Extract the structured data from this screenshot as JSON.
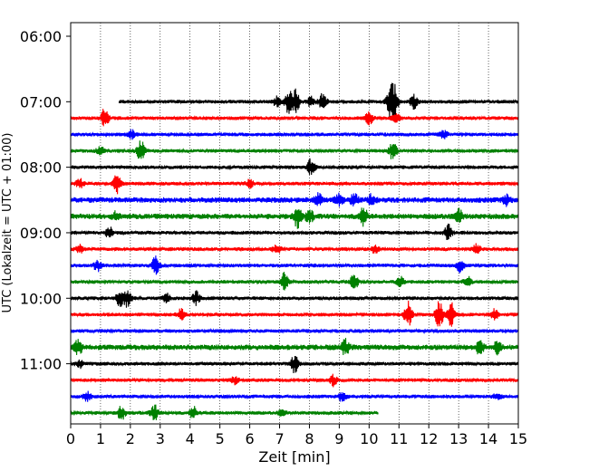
{
  "chart_data": {
    "type": "line",
    "title": "",
    "xlabel": "Zeit  [min]",
    "ylabel": "UTC (Lokalzeit = UTC + 01:00)",
    "xlim": [
      0,
      15
    ],
    "x_ticks": [
      0,
      1,
      2,
      3,
      4,
      5,
      6,
      7,
      8,
      9,
      10,
      11,
      12,
      13,
      14,
      15
    ],
    "x_tick_labels": [
      "0",
      "1",
      "2",
      "3",
      "4",
      "5",
      "6",
      "7",
      "8",
      "9",
      "10",
      "11",
      "12",
      "13",
      "14",
      "15"
    ],
    "y_ticks": [
      "06:00",
      "07:00",
      "08:00",
      "09:00",
      "10:00",
      "11:00"
    ],
    "grid": "vertical dotted at each minute",
    "trace_interval_minutes": 15,
    "traces": [
      {
        "start": "07:00",
        "color": "#000000",
        "x_start": 1.62,
        "x_end": 15,
        "noise": 2,
        "events": [
          [
            6.9,
            5
          ],
          [
            7.3,
            12
          ],
          [
            7.55,
            14
          ],
          [
            8.05,
            6
          ],
          [
            8.45,
            9
          ],
          [
            10.7,
            14
          ],
          [
            10.85,
            16
          ],
          [
            11.5,
            7
          ]
        ]
      },
      {
        "start": "07:15",
        "color": "#ff0000",
        "x_start": 0,
        "x_end": 15,
        "noise": 2,
        "events": [
          [
            1.15,
            12
          ],
          [
            10.0,
            7
          ],
          [
            10.9,
            5
          ]
        ]
      },
      {
        "start": "07:30",
        "color": "#0000ff",
        "x_start": 0,
        "x_end": 15,
        "noise": 2,
        "events": [
          [
            2.05,
            5
          ],
          [
            12.5,
            4
          ]
        ]
      },
      {
        "start": "07:45",
        "color": "#008000",
        "x_start": 0,
        "x_end": 15,
        "noise": 2,
        "events": [
          [
            1.0,
            5
          ],
          [
            2.35,
            11
          ],
          [
            10.8,
            10
          ]
        ]
      },
      {
        "start": "08:00",
        "color": "#000000",
        "x_start": 0,
        "x_end": 15,
        "noise": 2,
        "events": [
          [
            8.05,
            9
          ]
        ]
      },
      {
        "start": "08:15",
        "color": "#ff0000",
        "x_start": 0,
        "x_end": 15,
        "noise": 2,
        "events": [
          [
            0.3,
            5
          ],
          [
            1.55,
            10
          ],
          [
            6.0,
            4
          ]
        ]
      },
      {
        "start": "08:30",
        "color": "#0000ff",
        "x_start": 0,
        "x_end": 15,
        "noise": 3,
        "events": [
          [
            8.3,
            6
          ],
          [
            9.0,
            6
          ],
          [
            9.5,
            6
          ],
          [
            10.1,
            6
          ],
          [
            14.6,
            5
          ]
        ]
      },
      {
        "start": "08:45",
        "color": "#008000",
        "x_start": 0,
        "x_end": 15,
        "noise": 3,
        "events": [
          [
            1.5,
            4
          ],
          [
            7.6,
            12
          ],
          [
            8.0,
            7
          ],
          [
            9.8,
            11
          ],
          [
            13.0,
            9
          ]
        ]
      },
      {
        "start": "09:00",
        "color": "#000000",
        "x_start": 0,
        "x_end": 15,
        "noise": 2,
        "events": [
          [
            1.3,
            6
          ],
          [
            12.65,
            9
          ]
        ]
      },
      {
        "start": "09:15",
        "color": "#ff0000",
        "x_start": 0,
        "x_end": 15,
        "noise": 2,
        "events": [
          [
            0.3,
            4
          ],
          [
            6.9,
            5
          ],
          [
            10.2,
            4
          ],
          [
            13.6,
            5
          ]
        ]
      },
      {
        "start": "09:30",
        "color": "#0000ff",
        "x_start": 0,
        "x_end": 15,
        "noise": 2,
        "events": [
          [
            0.9,
            6
          ],
          [
            2.85,
            10
          ],
          [
            13.05,
            7
          ]
        ]
      },
      {
        "start": "09:45",
        "color": "#008000",
        "x_start": 0,
        "x_end": 15,
        "noise": 2,
        "events": [
          [
            7.15,
            10
          ],
          [
            9.5,
            8
          ],
          [
            11.05,
            5
          ],
          [
            13.3,
            6
          ]
        ]
      },
      {
        "start": "10:00",
        "color": "#000000",
        "x_start": 0,
        "x_end": 15,
        "noise": 2,
        "events": [
          [
            1.65,
            8
          ],
          [
            1.9,
            9
          ],
          [
            3.2,
            5
          ],
          [
            4.2,
            8
          ]
        ]
      },
      {
        "start": "10:15",
        "color": "#ff0000",
        "x_start": 0,
        "x_end": 15,
        "noise": 2,
        "events": [
          [
            3.7,
            6
          ],
          [
            11.3,
            14
          ],
          [
            12.35,
            16
          ],
          [
            12.75,
            14
          ],
          [
            14.2,
            6
          ]
        ]
      },
      {
        "start": "10:30",
        "color": "#0000ff",
        "x_start": 0,
        "x_end": 15,
        "noise": 2,
        "events": []
      },
      {
        "start": "10:45",
        "color": "#008000",
        "x_start": 0,
        "x_end": 15,
        "noise": 3,
        "events": [
          [
            0.25,
            8
          ],
          [
            9.2,
            8
          ],
          [
            13.7,
            7
          ],
          [
            14.3,
            6
          ]
        ]
      },
      {
        "start": "11:00",
        "color": "#000000",
        "x_start": 0,
        "x_end": 15,
        "noise": 2,
        "events": [
          [
            0.3,
            4
          ],
          [
            7.5,
            10
          ]
        ]
      },
      {
        "start": "11:15",
        "color": "#ff0000",
        "x_start": 0,
        "x_end": 15,
        "noise": 2,
        "events": [
          [
            8.8,
            6
          ],
          [
            5.5,
            4
          ]
        ]
      },
      {
        "start": "11:30",
        "color": "#0000ff",
        "x_start": 0,
        "x_end": 15,
        "noise": 2,
        "events": [
          [
            0.55,
            5
          ],
          [
            9.1,
            5
          ],
          [
            14.3,
            4
          ]
        ]
      },
      {
        "start": "11:45",
        "color": "#008000",
        "x_start": 0,
        "x_end": 10.3,
        "noise": 2,
        "events": [
          [
            1.7,
            8
          ],
          [
            2.8,
            9
          ],
          [
            4.1,
            7
          ],
          [
            7.1,
            4
          ]
        ]
      }
    ]
  }
}
